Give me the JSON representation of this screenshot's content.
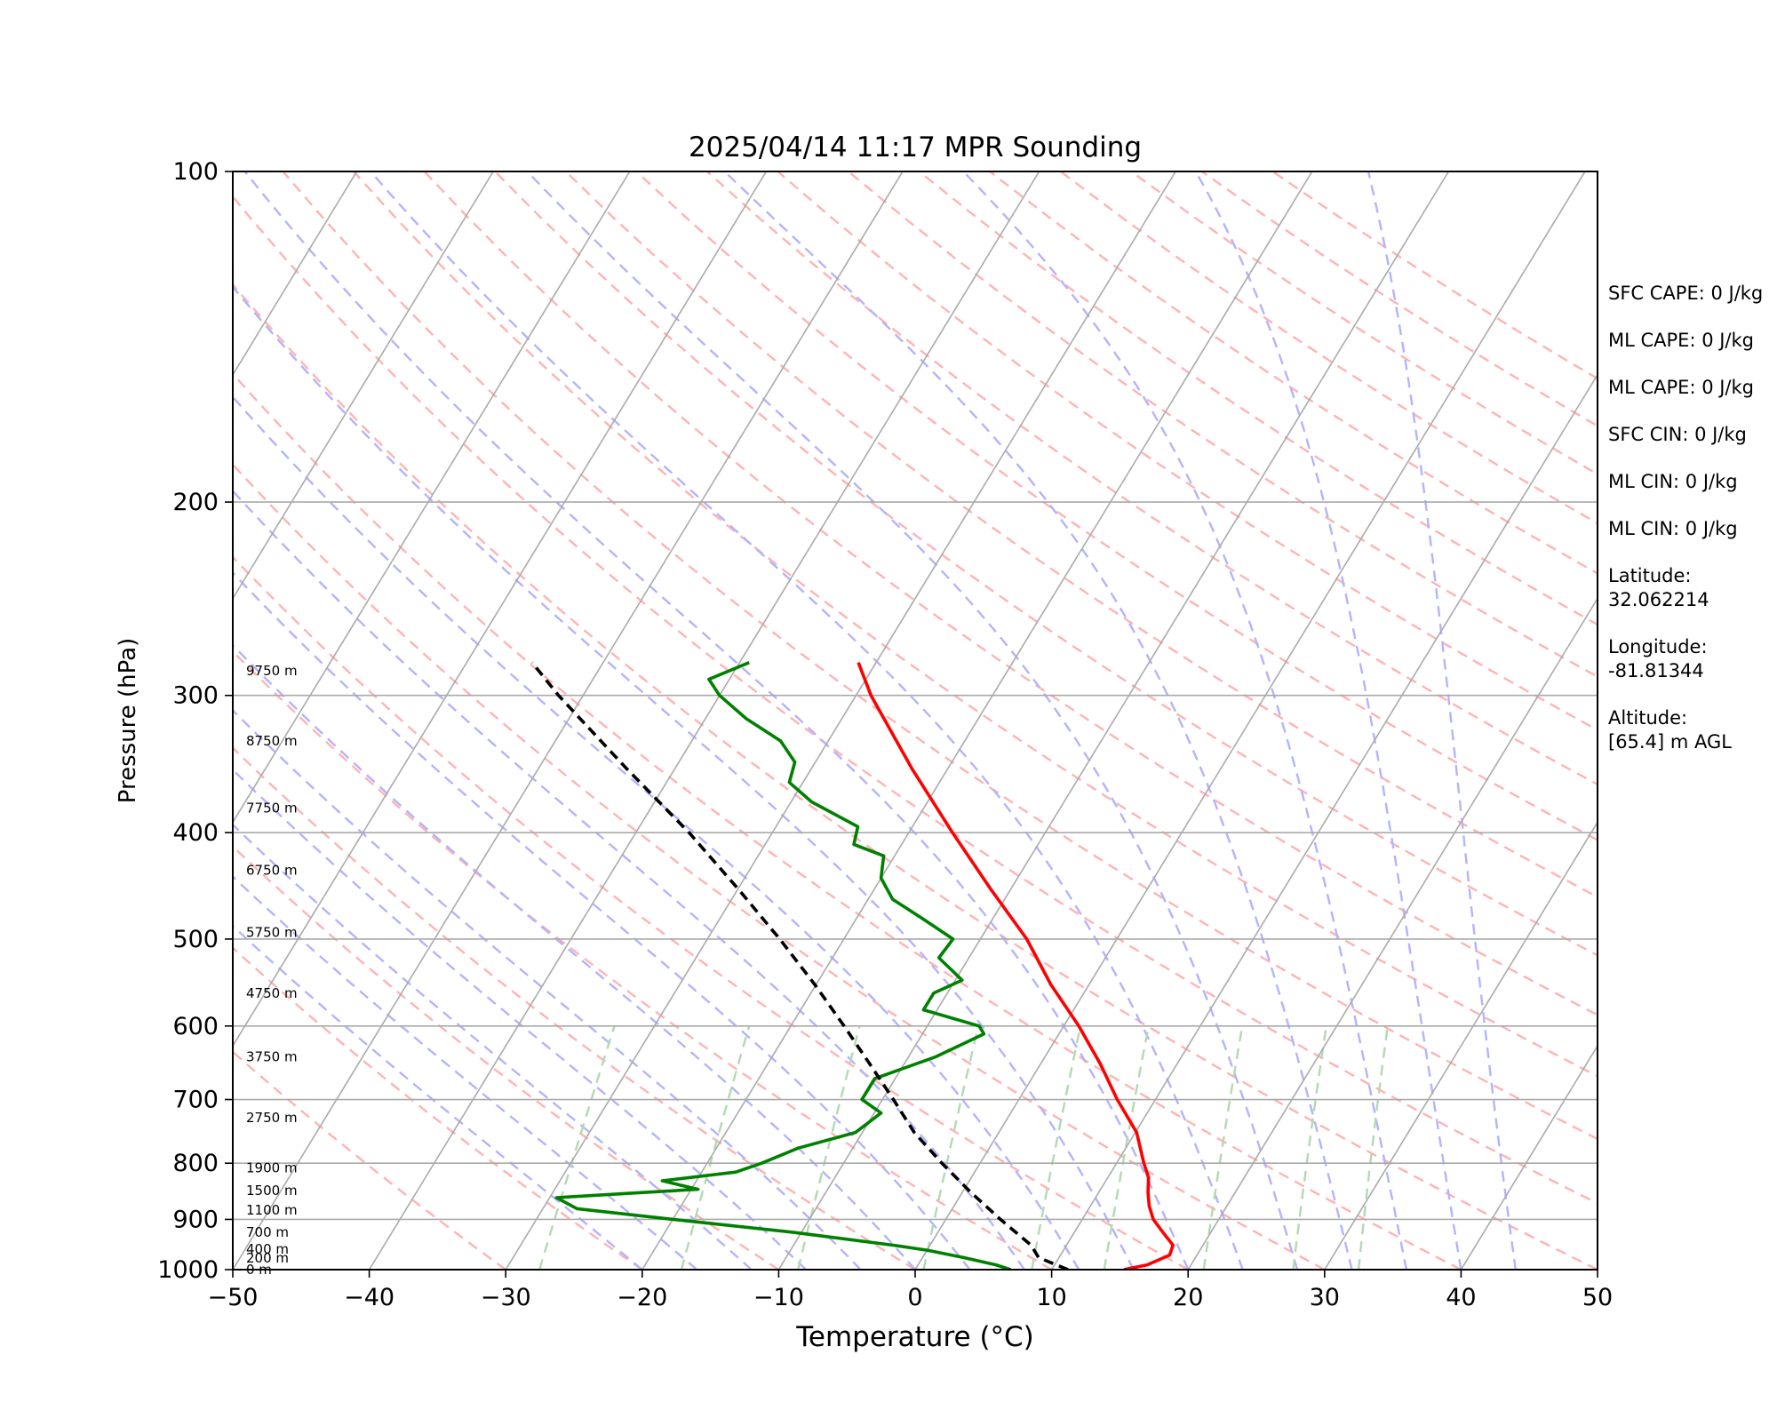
{
  "chart_data": {
    "type": "line",
    "title": "2025/04/14 11:17 MPR Sounding",
    "xlabel": "Temperature (°C)",
    "ylabel": "Pressure (hPa)",
    "xlim": [
      -50,
      50
    ],
    "ylim": [
      1000,
      100
    ],
    "y_scale": "log",
    "x_ticks": [
      -50,
      -40,
      -30,
      -20,
      -10,
      0,
      10,
      20,
      30,
      40,
      50
    ],
    "x_tick_labels": [
      "−50",
      "−40",
      "−30",
      "−20",
      "−10",
      "0",
      "10",
      "20",
      "30",
      "40",
      "50"
    ],
    "y_ticks": [
      1000,
      900,
      800,
      700,
      600,
      500,
      400,
      300,
      200,
      100
    ],
    "y_tick_labels": [
      "1000",
      "900",
      "800",
      "700",
      "600",
      "500",
      "400",
      "300",
      "200",
      "100"
    ],
    "grid": true,
    "skew": "skew-T",
    "height_labels": [
      {
        "p": 1000,
        "label": "0 m"
      },
      {
        "p": 976,
        "label": "200 m"
      },
      {
        "p": 958,
        "label": "400 m"
      },
      {
        "p": 925,
        "label": "700 m"
      },
      {
        "p": 883,
        "label": "1100 m"
      },
      {
        "p": 847,
        "label": "1500 m"
      },
      {
        "p": 808,
        "label": "1900 m"
      },
      {
        "p": 727,
        "label": "2750 m"
      },
      {
        "p": 640,
        "label": "3750 m"
      },
      {
        "p": 560,
        "label": "4750 m"
      },
      {
        "p": 493,
        "label": "5750 m"
      },
      {
        "p": 433,
        "label": "6750 m"
      },
      {
        "p": 380,
        "label": "7750 m"
      },
      {
        "p": 330,
        "label": "8750 m"
      },
      {
        "p": 285,
        "label": "9750 m"
      }
    ],
    "series": [
      {
        "color": "#ff0000",
        "style": "solid",
        "points": [
          [
            1000,
            15.3
          ],
          [
            990,
            16.8
          ],
          [
            970,
            18.0
          ],
          [
            950,
            17.8
          ],
          [
            925,
            16.5
          ],
          [
            900,
            15.2
          ],
          [
            875,
            14.3
          ],
          [
            850,
            13.6
          ],
          [
            825,
            13.0
          ],
          [
            800,
            12.0
          ],
          [
            750,
            10.1
          ],
          [
            700,
            7.2
          ],
          [
            650,
            4.4
          ],
          [
            600,
            1.1
          ],
          [
            550,
            -2.8
          ],
          [
            500,
            -6.6
          ],
          [
            450,
            -11.5
          ],
          [
            400,
            -16.8
          ],
          [
            350,
            -22.6
          ],
          [
            300,
            -28.9
          ],
          [
            280,
            -31.3
          ]
        ]
      },
      {
        "color": "#008000",
        "style": "solid",
        "points": [
          [
            1000,
            7.0
          ],
          [
            990,
            5.7
          ],
          [
            975,
            3.0
          ],
          [
            960,
            0.0
          ],
          [
            950,
            -2.7
          ],
          [
            925,
            -10.5
          ],
          [
            900,
            -20.0
          ],
          [
            880,
            -27.5
          ],
          [
            860,
            -29.5
          ],
          [
            850,
            -23.0
          ],
          [
            845,
            -19.5
          ],
          [
            830,
            -22.5
          ],
          [
            815,
            -17.5
          ],
          [
            800,
            -16.0
          ],
          [
            775,
            -14.0
          ],
          [
            750,
            -10.5
          ],
          [
            720,
            -9.5
          ],
          [
            700,
            -11.5
          ],
          [
            670,
            -11.5
          ],
          [
            640,
            -8.0
          ],
          [
            610,
            -5.5
          ],
          [
            600,
            -6.2
          ],
          [
            580,
            -11.0
          ],
          [
            560,
            -11.0
          ],
          [
            545,
            -9.5
          ],
          [
            520,
            -12.2
          ],
          [
            500,
            -12.0
          ],
          [
            480,
            -15.0
          ],
          [
            460,
            -18.2
          ],
          [
            440,
            -20.0
          ],
          [
            420,
            -20.8
          ],
          [
            410,
            -23.5
          ],
          [
            395,
            -24.0
          ],
          [
            375,
            -28.5
          ],
          [
            360,
            -31.0
          ],
          [
            345,
            -31.5
          ],
          [
            330,
            -33.5
          ],
          [
            315,
            -37.0
          ],
          [
            300,
            -40.0
          ],
          [
            290,
            -41.5
          ],
          [
            280,
            -39.3
          ]
        ]
      },
      {
        "color": "#000000",
        "style": "dashed",
        "points": [
          [
            1000,
            11.2
          ],
          [
            975,
            8.5
          ],
          [
            950,
            7.4
          ],
          [
            900,
            4.0
          ],
          [
            850,
            0.6
          ],
          [
            800,
            -2.8
          ],
          [
            750,
            -6.2
          ],
          [
            700,
            -9.2
          ],
          [
            650,
            -12.5
          ],
          [
            600,
            -16.1
          ],
          [
            550,
            -20.1
          ],
          [
            500,
            -24.7
          ],
          [
            450,
            -30.0
          ],
          [
            400,
            -36.1
          ],
          [
            350,
            -43.5
          ],
          [
            300,
            -51.8
          ],
          [
            280,
            -55.2
          ]
        ]
      }
    ],
    "info_lines": [
      "SFC CAPE: 0 J/kg",
      "ML CAPE: 0 J/kg",
      "ML CAPE: 0 J/kg",
      "SFC CIN: 0 J/kg",
      "ML CIN: 0 J/kg",
      "ML CIN: 0 J/kg",
      "Latitude:\n32.062214",
      "Longitude:\n-81.81344",
      "Altitude:\n[65.4] m AGL"
    ],
    "colors": {
      "isotherm": "#aaaaaa",
      "isobar": "#aaaaaa",
      "dry_adiabat": "#ffb3b3",
      "moist_adiabat": "#b3b3ff",
      "mixing_ratio": "#b3d9b3"
    }
  }
}
